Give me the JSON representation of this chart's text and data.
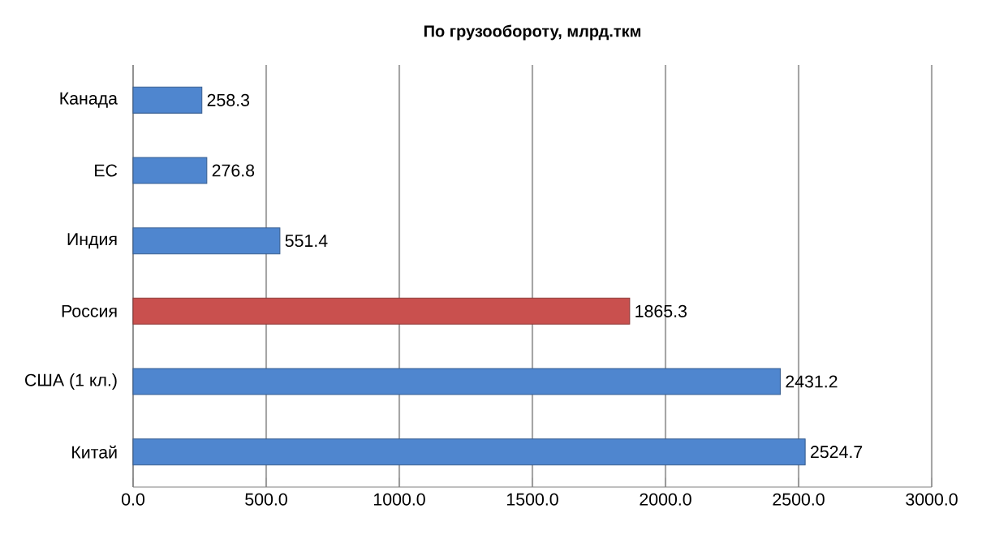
{
  "chart_data": {
    "type": "bar",
    "orientation": "horizontal",
    "title": "По грузообороту, млрд.ткм",
    "categories": [
      "Канада",
      "ЕС",
      "Индия",
      "Россия",
      "США (1 кл.)",
      "Китай"
    ],
    "values": [
      258.3,
      276.8,
      551.4,
      1865.3,
      2431.2,
      2524.7
    ],
    "colors": [
      "#4f86cf",
      "#4f86cf",
      "#4f86cf",
      "#c9504e",
      "#4f86cf",
      "#4f86cf"
    ],
    "xlim": [
      0,
      3000
    ],
    "xticks": [
      {
        "value": 0,
        "label": "0.0"
      },
      {
        "value": 500,
        "label": "500.0"
      },
      {
        "value": 1000,
        "label": "1000.0"
      },
      {
        "value": 1500,
        "label": "1500.0"
      },
      {
        "value": 2000,
        "label": "2000.0"
      },
      {
        "value": 2500,
        "label": "2500.0"
      },
      {
        "value": 3000,
        "label": "3000.0"
      }
    ],
    "grid": "x",
    "data_labels": true
  }
}
